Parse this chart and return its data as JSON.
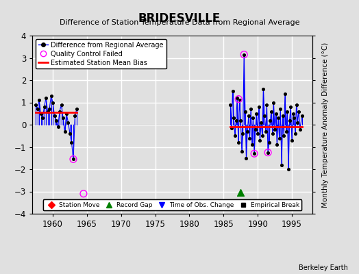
{
  "title": "BRIDESVILLE",
  "subtitle": "Difference of Station Temperature Data from Regional Average",
  "ylabel": "Monthly Temperature Anomaly Difference (°C)",
  "xlim": [
    1957,
    1998
  ],
  "ylim": [
    -4,
    4
  ],
  "yticks": [
    -4,
    -3,
    -2,
    -1,
    0,
    1,
    2,
    3,
    4
  ],
  "xticks": [
    1960,
    1965,
    1970,
    1975,
    1980,
    1985,
    1990,
    1995
  ],
  "background_color": "#e0e0e0",
  "grid_color": "#ffffff",
  "segment1_start": 1957.5,
  "segment1_end": 1963.5,
  "segment1_bias": 0.55,
  "segment2_start": 1986.0,
  "segment2_end": 1996.5,
  "segment2_bias": -0.1,
  "record_gap_x": 1987.5,
  "record_gap_y": -3.05,
  "qc_failed_points": [
    [
      1963.0,
      -1.55
    ],
    [
      1964.5,
      -3.1
    ],
    [
      1987.2,
      1.15
    ],
    [
      1988.0,
      3.15
    ],
    [
      1989.5,
      -1.3
    ],
    [
      1991.5,
      -1.25
    ]
  ],
  "data_segment1": [
    [
      1957.5,
      0.9
    ],
    [
      1957.75,
      0.7
    ],
    [
      1958.0,
      1.1
    ],
    [
      1958.25,
      0.5
    ],
    [
      1958.5,
      0.3
    ],
    [
      1958.75,
      0.8
    ],
    [
      1959.0,
      1.2
    ],
    [
      1959.25,
      0.6
    ],
    [
      1959.5,
      0.7
    ],
    [
      1959.75,
      1.3
    ],
    [
      1960.0,
      1.0
    ],
    [
      1960.25,
      0.4
    ],
    [
      1960.5,
      0.2
    ],
    [
      1960.75,
      -0.1
    ],
    [
      1961.0,
      0.6
    ],
    [
      1961.25,
      0.9
    ],
    [
      1961.5,
      0.3
    ],
    [
      1961.75,
      -0.3
    ],
    [
      1962.0,
      0.5
    ],
    [
      1962.25,
      0.1
    ],
    [
      1962.5,
      -0.4
    ],
    [
      1962.75,
      -0.8
    ],
    [
      1963.0,
      -1.55
    ],
    [
      1963.25,
      0.4
    ],
    [
      1963.5,
      0.7
    ]
  ],
  "data_segment2": [
    [
      1986.0,
      0.9
    ],
    [
      1986.17,
      -0.15
    ],
    [
      1986.33,
      1.5
    ],
    [
      1986.5,
      0.3
    ],
    [
      1986.67,
      -0.5
    ],
    [
      1986.83,
      0.2
    ],
    [
      1987.0,
      1.2
    ],
    [
      1987.17,
      -0.8
    ],
    [
      1987.33,
      1.1
    ],
    [
      1987.5,
      0.2
    ],
    [
      1987.67,
      -1.2
    ],
    [
      1987.83,
      -0.4
    ],
    [
      1988.0,
      3.15
    ],
    [
      1988.17,
      0.6
    ],
    [
      1988.33,
      -1.5
    ],
    [
      1988.5,
      -0.3
    ],
    [
      1988.67,
      0.4
    ],
    [
      1988.83,
      -0.6
    ],
    [
      1989.0,
      0.7
    ],
    [
      1989.17,
      -0.9
    ],
    [
      1989.33,
      0.3
    ],
    [
      1989.5,
      -1.3
    ],
    [
      1989.67,
      -0.2
    ],
    [
      1989.83,
      0.5
    ],
    [
      1990.0,
      -0.4
    ],
    [
      1990.17,
      0.8
    ],
    [
      1990.33,
      -0.7
    ],
    [
      1990.5,
      0.1
    ],
    [
      1990.67,
      -0.5
    ],
    [
      1990.83,
      1.6
    ],
    [
      1991.0,
      0.4
    ],
    [
      1991.17,
      -0.3
    ],
    [
      1991.33,
      0.9
    ],
    [
      1991.5,
      -1.25
    ],
    [
      1991.67,
      -0.8
    ],
    [
      1991.83,
      0.2
    ],
    [
      1992.0,
      0.6
    ],
    [
      1992.17,
      -0.4
    ],
    [
      1992.33,
      1.0
    ],
    [
      1992.5,
      -0.2
    ],
    [
      1992.67,
      0.5
    ],
    [
      1992.83,
      -0.9
    ],
    [
      1993.0,
      0.3
    ],
    [
      1993.17,
      -0.6
    ],
    [
      1993.33,
      0.7
    ],
    [
      1993.5,
      -1.8
    ],
    [
      1993.67,
      0.4
    ],
    [
      1993.83,
      -0.5
    ],
    [
      1994.0,
      1.4
    ],
    [
      1994.17,
      -0.3
    ],
    [
      1994.33,
      0.6
    ],
    [
      1994.5,
      -2.0
    ],
    [
      1994.67,
      0.2
    ],
    [
      1994.83,
      0.8
    ],
    [
      1995.0,
      -0.7
    ],
    [
      1995.17,
      0.5
    ],
    [
      1995.33,
      0.3
    ],
    [
      1995.5,
      -0.4
    ],
    [
      1995.67,
      0.9
    ],
    [
      1995.83,
      0.1
    ],
    [
      1996.0,
      0.6
    ],
    [
      1996.17,
      -0.2
    ],
    [
      1996.5,
      0.4
    ]
  ]
}
